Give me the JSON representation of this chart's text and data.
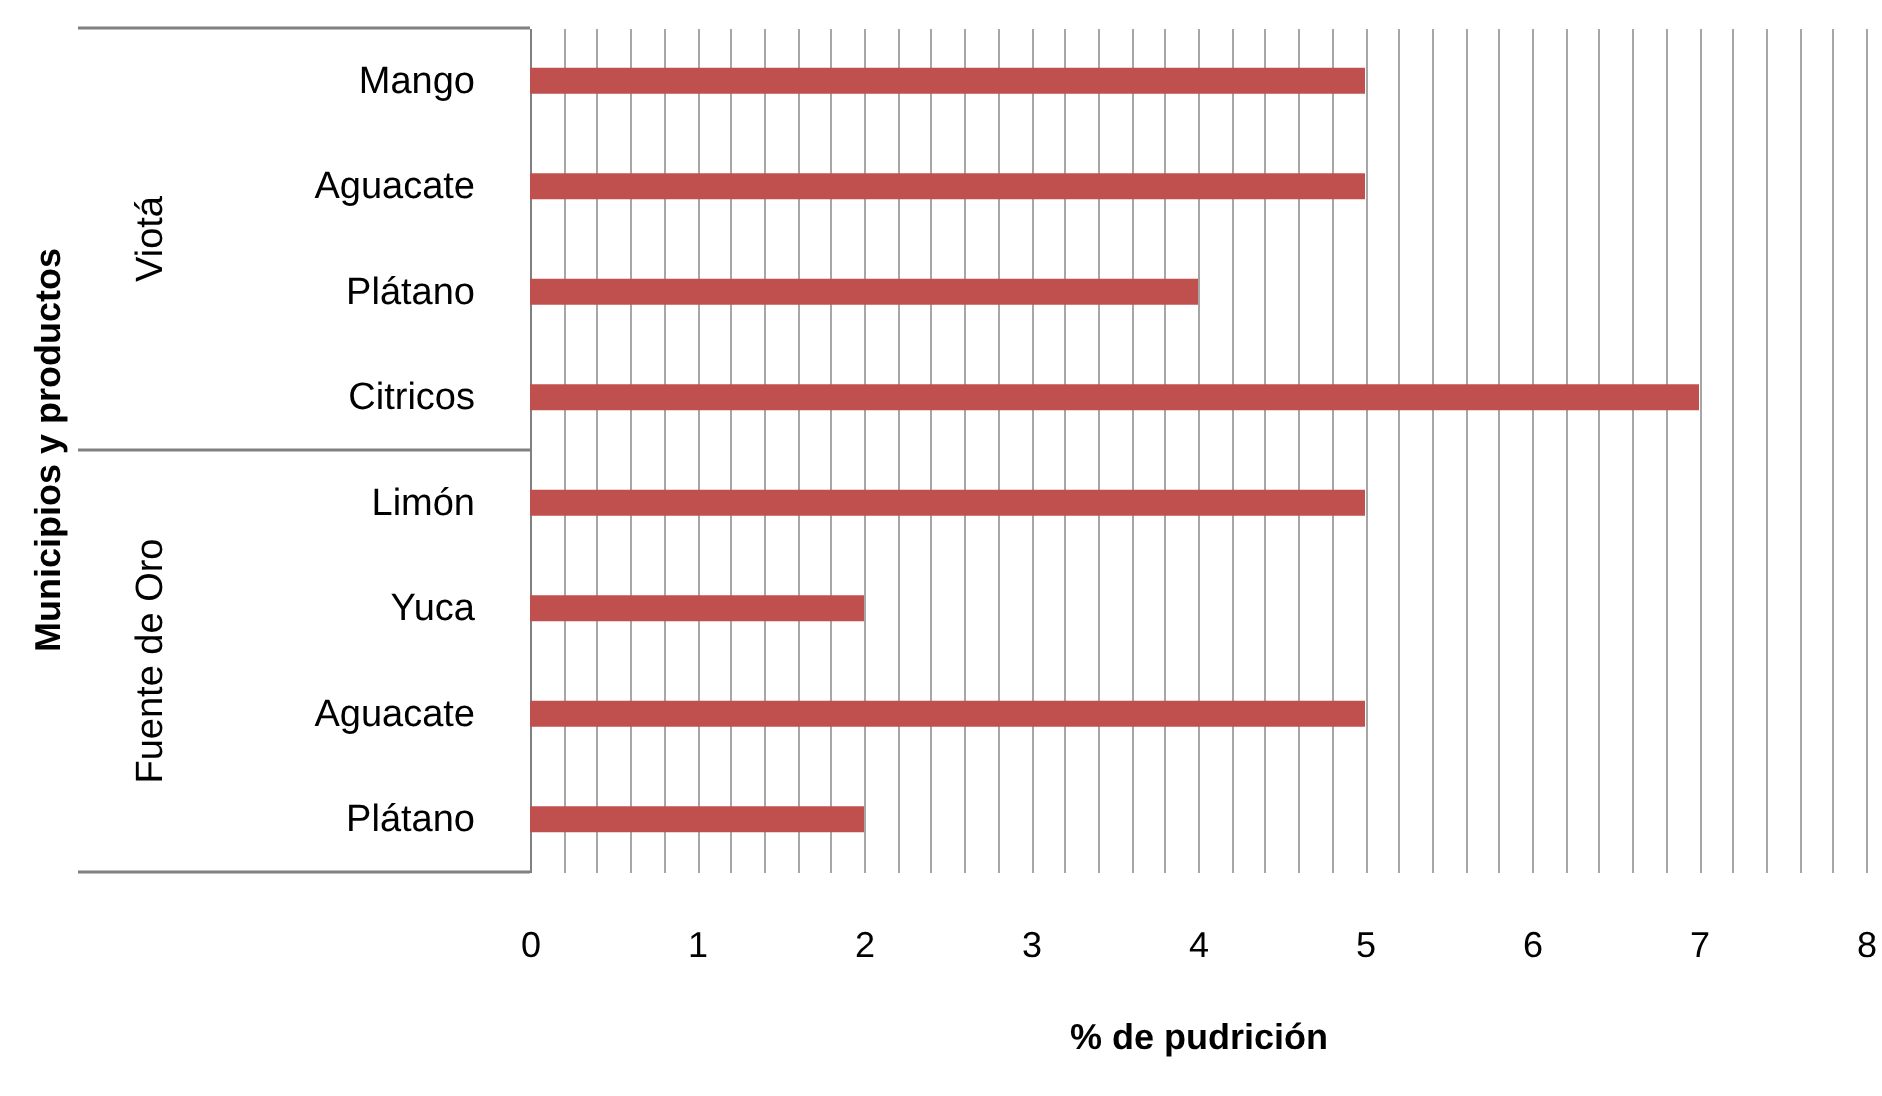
{
  "chart_data": {
    "type": "bar",
    "orientation": "horizontal",
    "xlabel": "% de pudrición",
    "categories": [
      "Mango",
      "Aguacate",
      "Plátano",
      "Citricos",
      "Limón",
      "Yuca",
      "Aguacate",
      "Plátano"
    ],
    "values": [
      5,
      5,
      4,
      7,
      5,
      2,
      5,
      2
    ],
    "color": "#c0504d",
    "annotations": [
      "Municipios  y productos",
      "Viotá",
      "Fuente de Oro"
    ],
    "xlim": [
      0,
      8
    ],
    "xticks": [
      0,
      {
        "value": 0.2,
        "label": null
      },
      {
        "value": 0.4,
        "label": null
      },
      {
        "value": 0.6,
        "label": null
      },
      {
        "value": 0.8,
        "label": null
      },
      1,
      {
        "value": 1.2,
        "label": null
      },
      {
        "value": 1.4,
        "label": null
      },
      {
        "value": 1.6,
        "label": null
      },
      {
        "value": 1.8,
        "label": null
      },
      2,
      {
        "value": 2.2,
        "label": null
      },
      {
        "value": 2.4,
        "label": null
      },
      {
        "value": 2.6,
        "label": null
      },
      {
        "value": 2.8,
        "label": null
      },
      3,
      {
        "value": 3.2,
        "label": null
      },
      {
        "value": 3.4,
        "label": null
      },
      {
        "value": 3.6,
        "label": null
      },
      {
        "value": 3.8,
        "label": null
      },
      4,
      {
        "value": 4.2,
        "label": null
      },
      {
        "value": 4.4,
        "label": null
      },
      {
        "value": 4.6,
        "label": null
      },
      {
        "value": 4.8,
        "label": null
      },
      5,
      {
        "value": 5.2,
        "label": null
      },
      {
        "value": 5.4,
        "label": null
      },
      {
        "value": 5.6,
        "label": null
      },
      {
        "value": 5.8,
        "label": null
      },
      6,
      {
        "value": 6.2,
        "label": null
      },
      {
        "value": 6.4,
        "label": null
      },
      {
        "value": 6.6,
        "label": null
      },
      {
        "value": 6.8,
        "label": null
      },
      7,
      {
        "value": 7.2,
        "label": null
      },
      {
        "value": 7.4,
        "label": null
      },
      {
        "value": 7.6,
        "label": null
      },
      {
        "value": 7.8,
        "label": null
      },
      8
    ],
    "grid": "x"
  }
}
